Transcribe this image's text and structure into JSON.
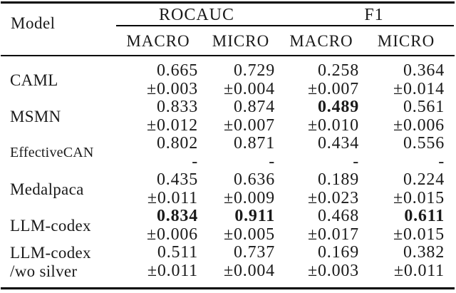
{
  "page": {
    "background": "#ffffff",
    "text_color": "#1a1a1a",
    "rule_color": "#000000"
  },
  "table": {
    "model_header": "Model",
    "groups": [
      {
        "label": "ROCAUC",
        "subcolumns": [
          "MACRO",
          "MICRO"
        ]
      },
      {
        "label": "F1",
        "subcolumns": [
          "MACRO",
          "MICRO"
        ]
      }
    ],
    "rows": [
      {
        "model_lines": [
          "CAML"
        ],
        "cells": [
          {
            "value": "0.665",
            "error": "±0.003",
            "bold": false
          },
          {
            "value": "0.729",
            "error": "±0.004",
            "bold": false
          },
          {
            "value": "0.258",
            "error": "±0.007",
            "bold": false
          },
          {
            "value": "0.364",
            "error": "±0.014",
            "bold": false
          }
        ]
      },
      {
        "model_lines": [
          "MSMN"
        ],
        "cells": [
          {
            "value": "0.833",
            "error": "±0.012",
            "bold": false
          },
          {
            "value": "0.874",
            "error": "±0.007",
            "bold": false
          },
          {
            "value": "0.489",
            "error": "±0.010",
            "bold": true
          },
          {
            "value": "0.561",
            "error": "±0.006",
            "bold": false
          }
        ]
      },
      {
        "model_lines": [
          "EffectiveCAN"
        ],
        "cells": [
          {
            "value": "0.802",
            "error": "-",
            "bold": false
          },
          {
            "value": "0.871",
            "error": "-",
            "bold": false
          },
          {
            "value": "0.434",
            "error": "-",
            "bold": false
          },
          {
            "value": "0.556",
            "error": "-",
            "bold": false
          }
        ]
      },
      {
        "model_lines": [
          "Medalpaca"
        ],
        "cells": [
          {
            "value": "0.435",
            "error": "±0.011",
            "bold": false
          },
          {
            "value": "0.636",
            "error": "±0.009",
            "bold": false
          },
          {
            "value": "0.189",
            "error": "±0.023",
            "bold": false
          },
          {
            "value": "0.224",
            "error": "±0.015",
            "bold": false
          }
        ]
      },
      {
        "model_lines": [
          "LLM-codex"
        ],
        "cells": [
          {
            "value": "0.834",
            "error": "±0.006",
            "bold": true
          },
          {
            "value": "0.911",
            "error": "±0.005",
            "bold": true
          },
          {
            "value": "0.468",
            "error": "±0.017",
            "bold": false
          },
          {
            "value": "0.611",
            "error": "±0.015",
            "bold": true
          }
        ]
      },
      {
        "model_lines": [
          "LLM-codex",
          "/wo silver"
        ],
        "cells": [
          {
            "value": "0.511",
            "error": "±0.011",
            "bold": false
          },
          {
            "value": "0.737",
            "error": "±0.004",
            "bold": false
          },
          {
            "value": "0.169",
            "error": "±0.003",
            "bold": false
          },
          {
            "value": "0.382",
            "error": "±0.011",
            "bold": false
          }
        ]
      }
    ]
  }
}
